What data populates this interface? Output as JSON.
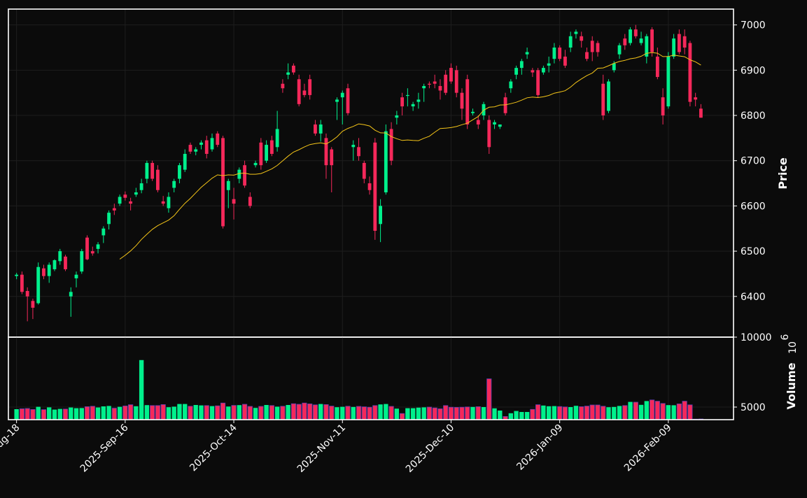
{
  "chart_data": {
    "type": "candlestick",
    "style": "dark",
    "colors": {
      "background": "#0b0b0b",
      "frame": "#ffffff",
      "grid": "#1e1e1e",
      "up": "#00f08c",
      "down": "#f5285a",
      "moving_average": "#f5c518",
      "text": "#ffffff"
    },
    "grid": true,
    "price_panel": {
      "ylabel": "Price",
      "ylim": [
        6310,
        7035
      ],
      "yticks": [
        6400,
        6500,
        6600,
        6700,
        6800,
        6900,
        7000
      ],
      "moving_average_period": 20
    },
    "volume_panel": {
      "ylabel": "Volume",
      "multiplier_label": "10",
      "multiplier_exponent": "6",
      "ylim": [
        4100,
        10000
      ],
      "yticks": [
        5000,
        10000
      ]
    },
    "xticks": [
      {
        "index": 0,
        "label": "2025-Aug-18"
      },
      {
        "index": 20,
        "label": "2025-Sep-16"
      },
      {
        "index": 40,
        "label": "2025-Oct-14"
      },
      {
        "index": 60,
        "label": "2025-Nov-11"
      },
      {
        "index": 80,
        "label": "2025-Dec-10"
      },
      {
        "index": 100,
        "label": "2026-Jan-09"
      },
      {
        "index": 120,
        "label": "2026-Feb-09"
      }
    ],
    "x_range": [
      -1.5,
      132
    ],
    "candles": [
      [
        6445,
        6452,
        6438,
        6448,
        4850
      ],
      [
        6448,
        6455,
        6405,
        6410,
        4880
      ],
      [
        6412,
        6420,
        6345,
        6400,
        4900
      ],
      [
        6390,
        6395,
        6350,
        6375,
        4830
      ],
      [
        6385,
        6475,
        6382,
        6465,
        5020
      ],
      [
        6462,
        6470,
        6438,
        6445,
        4820
      ],
      [
        6445,
        6475,
        6430,
        6470,
        4980
      ],
      [
        6460,
        6482,
        6456,
        6480,
        4820
      ],
      [
        6478,
        6505,
        6470,
        6500,
        4870
      ],
      [
        6488,
        6492,
        6456,
        6460,
        4860
      ],
      [
        6400,
        6420,
        6355,
        6410,
        4970
      ],
      [
        6440,
        6455,
        6420,
        6448,
        4920
      ],
      [
        6455,
        6505,
        6450,
        6500,
        4930
      ],
      [
        6530,
        6535,
        6480,
        6482,
        5030
      ],
      [
        6500,
        6510,
        6490,
        6495,
        5060
      ],
      [
        6505,
        6520,
        6495,
        6515,
        4970
      ],
      [
        6535,
        6555,
        6518,
        6550,
        5050
      ],
      [
        6560,
        6590,
        6548,
        6585,
        5080
      ],
      [
        6595,
        6605,
        6580,
        6590,
        4920
      ],
      [
        6605,
        6625,
        6600,
        6620,
        5020
      ],
      [
        6625,
        6632,
        6612,
        6618,
        5080
      ],
      [
        6610,
        6618,
        6590,
        6605,
        5170
      ],
      [
        6625,
        6640,
        6620,
        6630,
        5060
      ],
      [
        6635,
        6660,
        6628,
        6650,
        8360
      ],
      [
        6660,
        6700,
        6650,
        6695,
        5140
      ],
      [
        6695,
        6700,
        6655,
        6660,
        5110
      ],
      [
        6680,
        6690,
        6630,
        6635,
        5110
      ],
      [
        6610,
        6622,
        6600,
        6605,
        5180
      ],
      [
        6595,
        6630,
        6585,
        6620,
        4990
      ],
      [
        6640,
        6660,
        6630,
        6655,
        5030
      ],
      [
        6660,
        6695,
        6650,
        6690,
        5220
      ],
      [
        6680,
        6725,
        6675,
        6715,
        5220
      ],
      [
        6735,
        6740,
        6715,
        6720,
        5060
      ],
      [
        6720,
        6730,
        6712,
        6725,
        5150
      ],
      [
        6735,
        6745,
        6725,
        6740,
        5120
      ],
      [
        6745,
        6755,
        6705,
        6715,
        5110
      ],
      [
        6725,
        6760,
        6720,
        6750,
        5070
      ],
      [
        6760,
        6765,
        6730,
        6735,
        5090
      ],
      [
        6750,
        6755,
        6550,
        6555,
        5290
      ],
      [
        6635,
        6660,
        6595,
        6655,
        5040
      ],
      [
        6615,
        6640,
        6570,
        6605,
        5120
      ],
      [
        6660,
        6685,
        6650,
        6680,
        5140
      ],
      [
        6690,
        6700,
        6640,
        6645,
        5200
      ],
      [
        6620,
        6630,
        6595,
        6600,
        5050
      ],
      [
        6690,
        6700,
        6685,
        6695,
        4940
      ],
      [
        6740,
        6750,
        6680,
        6690,
        5050
      ],
      [
        6700,
        6745,
        6695,
        6735,
        5150
      ],
      [
        6745,
        6755,
        6710,
        6715,
        5110
      ],
      [
        6730,
        6810,
        6720,
        6770,
        5030
      ],
      [
        6870,
        6880,
        6850,
        6860,
        5060
      ],
      [
        6890,
        6915,
        6880,
        6895,
        5150
      ],
      [
        6910,
        6915,
        6890,
        6895,
        5240
      ],
      [
        6880,
        6890,
        6820,
        6825,
        5200
      ],
      [
        6855,
        6870,
        6840,
        6845,
        5290
      ],
      [
        6880,
        6890,
        6835,
        6845,
        5230
      ],
      [
        6780,
        6790,
        6755,
        6760,
        5160
      ],
      [
        6760,
        6790,
        6742,
        6780,
        5220
      ],
      [
        6750,
        6760,
        6660,
        6690,
        5180
      ],
      [
        6725,
        6730,
        6630,
        6690,
        5070
      ],
      [
        6830,
        6840,
        6790,
        6835,
        4990
      ],
      [
        6840,
        6855,
        6780,
        6850,
        5020
      ],
      [
        6860,
        6870,
        6800,
        6805,
        5060
      ],
      [
        6730,
        6745,
        6700,
        6735,
        5010
      ],
      [
        6730,
        6750,
        6700,
        6710,
        5050
      ],
      [
        6695,
        6700,
        6650,
        6660,
        5020
      ],
      [
        6650,
        6665,
        6625,
        6635,
        4990
      ],
      [
        6740,
        6750,
        6525,
        6545,
        5110
      ],
      [
        6560,
        6615,
        6520,
        6600,
        5190
      ],
      [
        6630,
        6780,
        6625,
        6765,
        5220
      ],
      [
        6770,
        6785,
        6690,
        6700,
        5050
      ],
      [
        6795,
        6810,
        6780,
        6800,
        4890
      ],
      [
        6840,
        6850,
        6800,
        6820,
        4540
      ],
      [
        6845,
        6860,
        6820,
        6845,
        4920
      ],
      [
        6820,
        6830,
        6810,
        6825,
        4920
      ],
      [
        6830,
        6850,
        6815,
        6835,
        4960
      ],
      [
        6860,
        6870,
        6830,
        6865,
        4980
      ],
      [
        6870,
        6875,
        6860,
        6868,
        5000
      ],
      [
        6875,
        6890,
        6860,
        6870,
        4940
      ],
      [
        6865,
        6880,
        6835,
        6855,
        4880
      ],
      [
        6890,
        6900,
        6845,
        6850,
        5110
      ],
      [
        6905,
        6915,
        6870,
        6875,
        4990
      ],
      [
        6900,
        6910,
        6840,
        6850,
        4980
      ],
      [
        6850,
        6860,
        6790,
        6815,
        4990
      ],
      [
        6880,
        6890,
        6770,
        6780,
        5010
      ],
      [
        6805,
        6815,
        6800,
        6808,
        5010
      ],
      [
        6790,
        6800,
        6770,
        6780,
        5030
      ],
      [
        6800,
        6830,
        6790,
        6825,
        5000
      ],
      [
        6790,
        6800,
        6715,
        6730,
        7020
      ],
      [
        6780,
        6790,
        6770,
        6785,
        4910
      ],
      [
        6775,
        6780,
        6770,
        6780,
        4750
      ],
      [
        6840,
        6850,
        6800,
        6805,
        4330
      ],
      [
        6860,
        6880,
        6850,
        6875,
        4560
      ],
      [
        6890,
        6910,
        6880,
        6905,
        4720
      ],
      [
        6905,
        6925,
        6890,
        6920,
        4650
      ],
      [
        6935,
        6950,
        6925,
        6940,
        4650
      ],
      [
        6900,
        6905,
        6885,
        6895,
        4840
      ],
      [
        6900,
        6905,
        6840,
        6845,
        5170
      ],
      [
        6895,
        6910,
        6890,
        6905,
        5110
      ],
      [
        6910,
        6930,
        6895,
        6915,
        5060
      ],
      [
        6925,
        6960,
        6915,
        6950,
        5070
      ],
      [
        6950,
        6955,
        6920,
        6925,
        5040
      ],
      [
        6930,
        6945,
        6905,
        6910,
        5010
      ],
      [
        6950,
        6985,
        6940,
        6975,
        5000
      ],
      [
        6980,
        6990,
        6970,
        6985,
        5090
      ],
      [
        6975,
        6985,
        6950,
        6965,
        5030
      ],
      [
        6940,
        6950,
        6920,
        6925,
        5070
      ],
      [
        6965,
        6975,
        6920,
        6940,
        5150
      ],
      [
        6960,
        6965,
        6930,
        6940,
        5150
      ],
      [
        6870,
        6890,
        6790,
        6800,
        5060
      ],
      [
        6810,
        6880,
        6805,
        6875,
        4990
      ],
      [
        6900,
        6920,
        6895,
        6915,
        5010
      ],
      [
        6935,
        6960,
        6925,
        6955,
        5080
      ],
      [
        6970,
        6980,
        6945,
        6955,
        5110
      ],
      [
        6960,
        6995,
        6955,
        6990,
        5370
      ],
      [
        6990,
        7000,
        6970,
        6975,
        5350
      ],
      [
        6960,
        6985,
        6955,
        6970,
        5160
      ],
      [
        6930,
        6980,
        6915,
        6975,
        5430
      ],
      [
        6990,
        6995,
        6930,
        6940,
        5510
      ],
      [
        6930,
        6950,
        6880,
        6885,
        5420
      ],
      [
        6840,
        6860,
        6780,
        6800,
        5260
      ],
      [
        6820,
        6940,
        6815,
        6930,
        5140
      ],
      [
        6930,
        6980,
        6925,
        6970,
        5130
      ],
      [
        6980,
        6990,
        6935,
        6940,
        5230
      ],
      [
        6975,
        6990,
        6935,
        6950,
        5420
      ],
      [
        6960,
        6965,
        6820,
        6830,
        5160
      ],
      [
        6840,
        6850,
        6820,
        6835,
        4140
      ],
      [
        6815,
        6825,
        6795,
        6795,
        4150
      ]
    ]
  }
}
